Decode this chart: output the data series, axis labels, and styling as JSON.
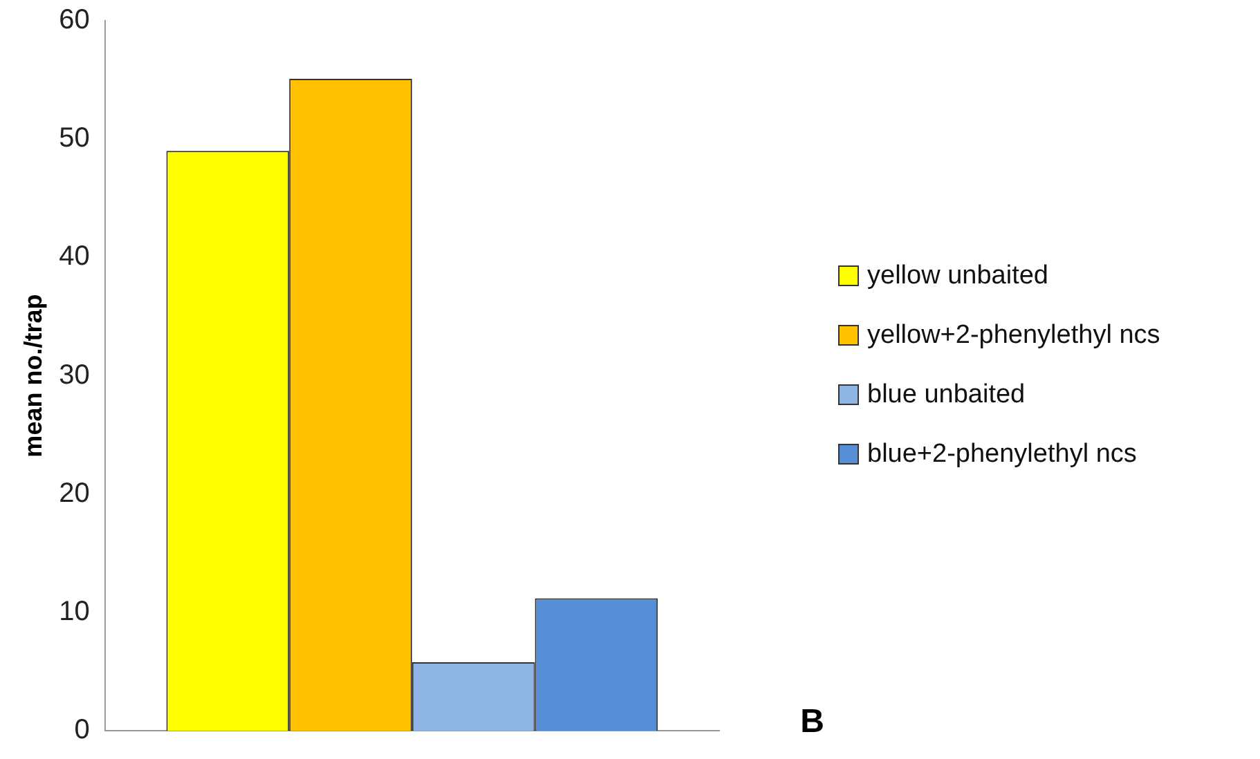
{
  "chart_data": {
    "type": "bar",
    "ylabel": "mean no./trap",
    "categories": [
      null
    ],
    "series": [
      {
        "name": "yellow unbaited",
        "color": "#ffff00",
        "values": [
          49.0
        ]
      },
      {
        "name": "yellow+2-phenylethyl ncs",
        "color": "#ffc000",
        "values": [
          55.1
        ]
      },
      {
        "name": "blue unbaited",
        "color": "#8eb4e3",
        "values": [
          5.8
        ]
      },
      {
        "name": "blue+2-phenylethyl ncs",
        "color": "#558ed5",
        "values": [
          11.2
        ]
      }
    ],
    "ylim": [
      0,
      60
    ],
    "yticks": [
      0,
      10,
      20,
      30,
      40,
      50,
      60
    ],
    "grid": false,
    "legend": "right",
    "annotations": [
      "B"
    ]
  }
}
